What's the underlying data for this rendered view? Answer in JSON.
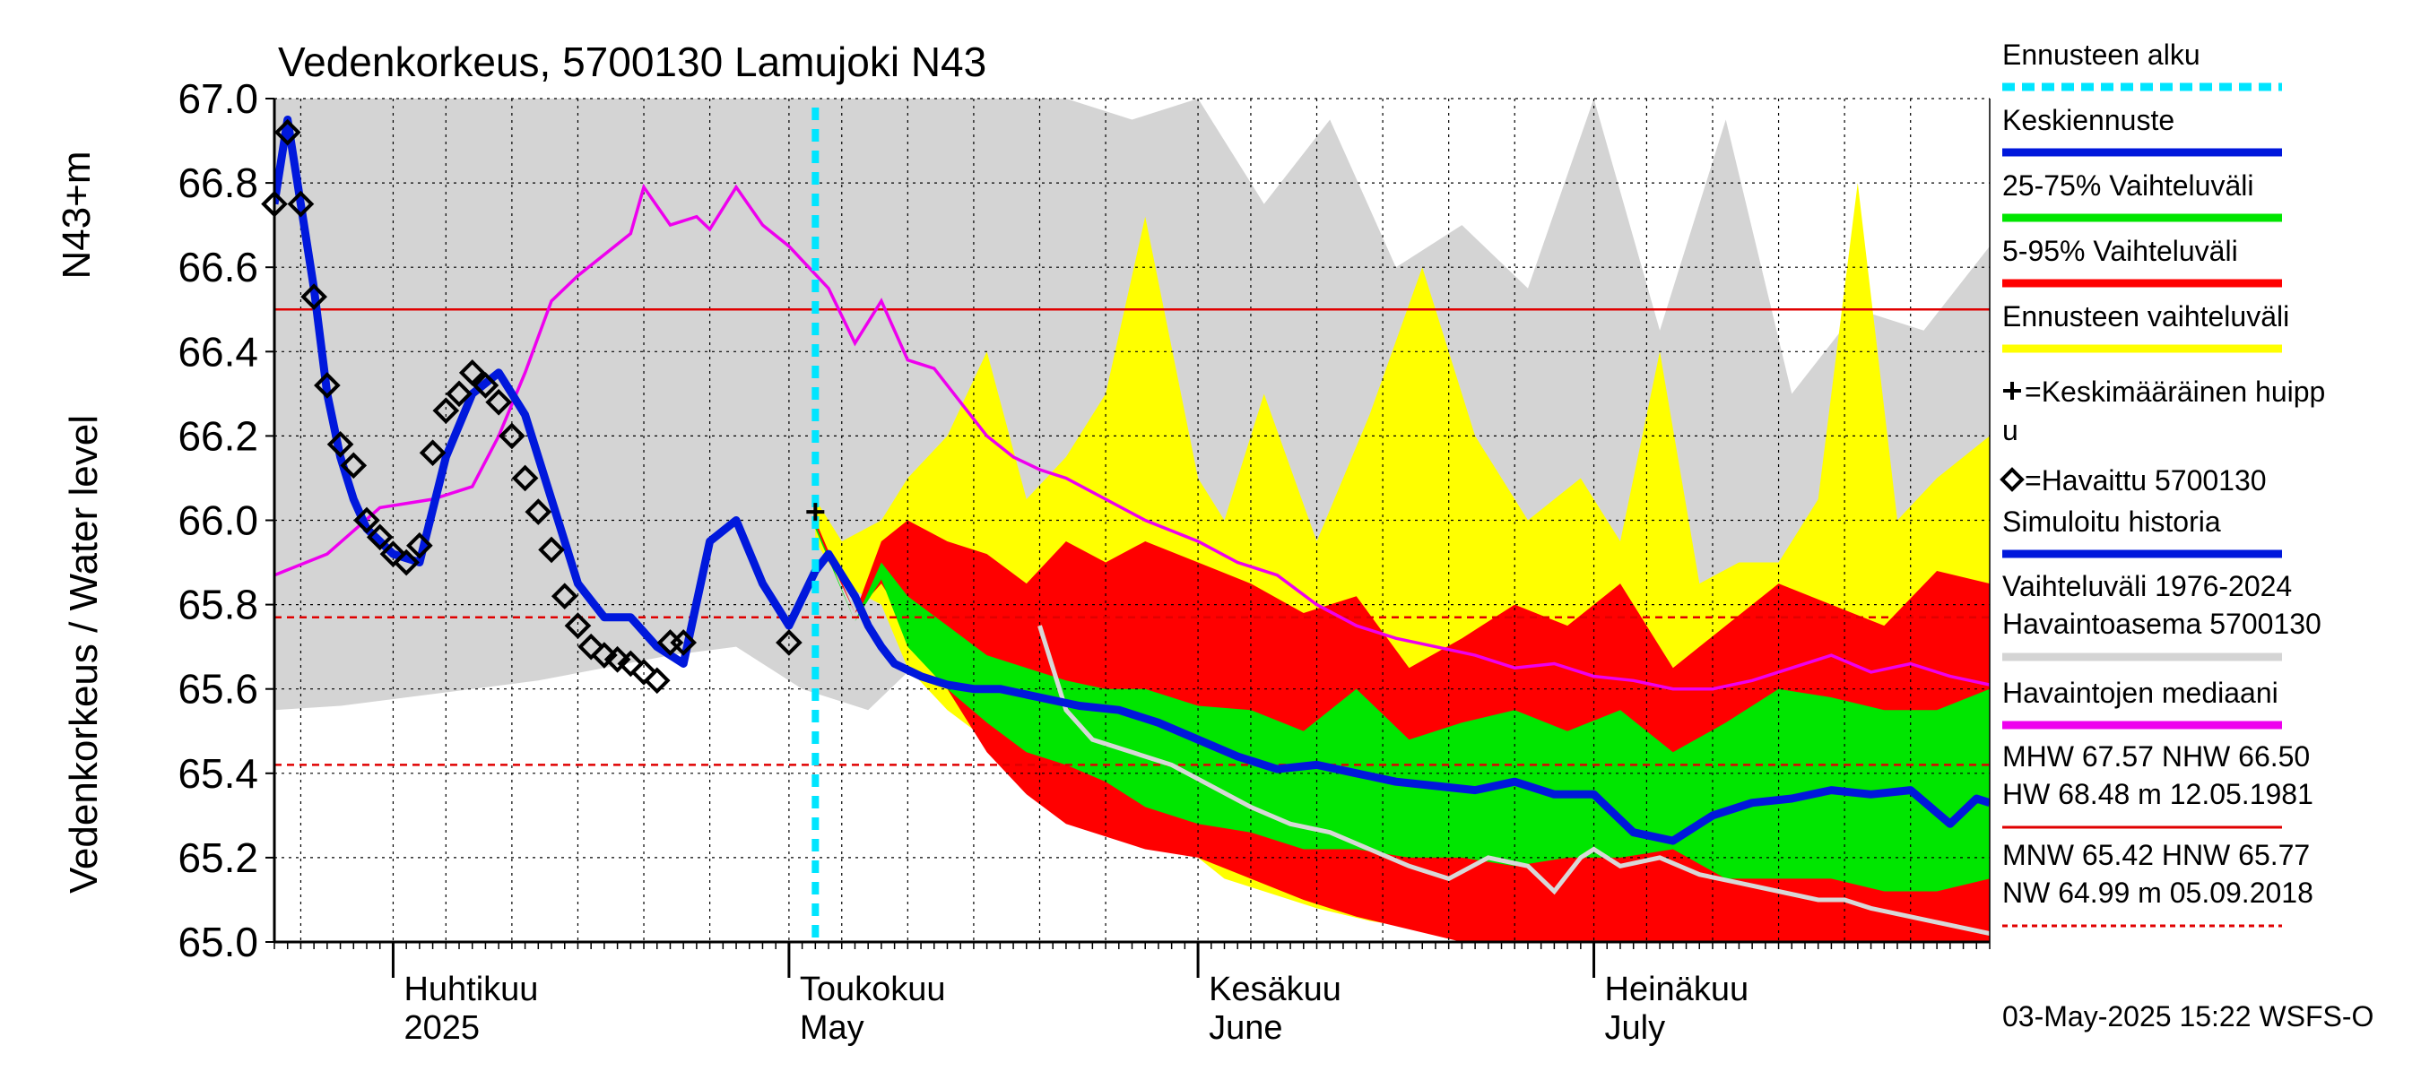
{
  "chart_data": {
    "type": "area",
    "title": "Vedenkorkeus, 5700130 Lamujoki N43",
    "ylabel_unit": "N43+m",
    "ylabel": "Vedenkorkeus / Water level",
    "ylim": [
      65.0,
      67.0
    ],
    "y_ticks": [
      65.0,
      65.2,
      65.4,
      65.6,
      65.8,
      66.0,
      66.2,
      66.4,
      66.6,
      66.8,
      67.0
    ],
    "x_range": [
      "2025-03-23",
      "2025-07-31"
    ],
    "month_labels": [
      {
        "date": "2025-04-01",
        "fi": "Huhtikuu",
        "en": "2025"
      },
      {
        "date": "2025-05-01",
        "fi": "Toukokuu",
        "en": "May"
      },
      {
        "date": "2025-06-01",
        "fi": "Kesäkuu",
        "en": "June"
      },
      {
        "date": "2025-07-01",
        "fi": "Heinäkuu",
        "en": "July"
      }
    ],
    "forecast_start": "2025-05-03",
    "reference_lines": [
      {
        "name": "NHW",
        "value": 66.5,
        "style": "solid",
        "color": "#e00000"
      },
      {
        "name": "HNW",
        "value": 65.77,
        "style": "dashed",
        "color": "#e00000"
      },
      {
        "name": "MNW",
        "value": 65.42,
        "style": "dashed",
        "color": "#e00000"
      }
    ],
    "colors": {
      "forecast_start": "#00e5ff",
      "mean_forecast": "#0018dc",
      "p25_75": "#00e600",
      "p5_95": "#ff0000",
      "forecast_range": "#ffff00",
      "historical_range": "#d4d4d4",
      "median": "#ee00ee",
      "light_line": "#d8d8d8",
      "observed": "#000000"
    },
    "series": {
      "hist_range": {
        "x": [
          "2025-03-23",
          "2025-03-28",
          "2025-04-02",
          "2025-04-07",
          "2025-04-12",
          "2025-04-17",
          "2025-04-22",
          "2025-04-27",
          "2025-05-02",
          "2025-05-07",
          "2025-05-12",
          "2025-05-17",
          "2025-05-22",
          "2025-05-27",
          "2025-06-01",
          "2025-06-06",
          "2025-06-11",
          "2025-06-16",
          "2025-06-21",
          "2025-06-26",
          "2025-07-01",
          "2025-07-06",
          "2025-07-11",
          "2025-07-16",
          "2025-07-21",
          "2025-07-26",
          "2025-07-31"
        ],
        "high": [
          67.0,
          67.0,
          67.0,
          67.0,
          67.0,
          67.0,
          67.0,
          67.0,
          67.0,
          67.0,
          67.0,
          67.0,
          67.0,
          66.95,
          67.0,
          66.75,
          66.95,
          66.6,
          66.7,
          66.55,
          67.0,
          66.45,
          66.95,
          66.3,
          66.5,
          66.45,
          66.65
        ],
        "low": [
          65.55,
          65.56,
          65.58,
          65.6,
          65.62,
          65.65,
          65.68,
          65.7,
          65.6,
          65.55,
          65.7,
          65.6,
          65.62,
          65.55,
          65.6,
          65.58,
          65.56,
          65.58,
          65.62,
          65.6,
          65.58,
          65.6,
          65.56,
          65.58,
          65.6,
          65.6,
          65.6
        ]
      },
      "forecast_range": {
        "x": [
          "2025-05-03",
          "2025-05-05",
          "2025-05-08",
          "2025-05-10",
          "2025-05-13",
          "2025-05-16",
          "2025-05-19",
          "2025-05-22",
          "2025-05-25",
          "2025-05-28",
          "2025-06-01",
          "2025-06-03",
          "2025-06-06",
          "2025-06-10",
          "2025-06-14",
          "2025-06-18",
          "2025-06-22",
          "2025-06-26",
          "2025-06-30",
          "2025-07-03",
          "2025-07-06",
          "2025-07-09",
          "2025-07-12",
          "2025-07-15",
          "2025-07-18",
          "2025-07-21",
          "2025-07-24",
          "2025-07-27",
          "2025-07-31"
        ],
        "high": [
          66.05,
          65.95,
          66.0,
          66.1,
          66.2,
          66.4,
          66.05,
          66.15,
          66.3,
          66.72,
          66.1,
          66.0,
          66.3,
          65.95,
          66.25,
          66.6,
          66.2,
          66.0,
          66.1,
          65.95,
          66.4,
          65.85,
          65.9,
          65.9,
          66.05,
          66.8,
          66.0,
          66.1,
          66.2
        ],
        "low": [
          65.95,
          65.85,
          65.8,
          65.65,
          65.55,
          65.48,
          65.45,
          65.42,
          65.38,
          65.3,
          65.2,
          65.15,
          65.12,
          65.08,
          65.05,
          65.03,
          65.02,
          65.01,
          65.0,
          65.0,
          65.0,
          65.0,
          65.0,
          65.0,
          65.0,
          65.0,
          65.0,
          65.0,
          65.0
        ]
      },
      "p5_95": {
        "x": [
          "2025-05-03",
          "2025-05-06",
          "2025-05-08",
          "2025-05-10",
          "2025-05-13",
          "2025-05-16",
          "2025-05-19",
          "2025-05-22",
          "2025-05-25",
          "2025-05-28",
          "2025-06-01",
          "2025-06-05",
          "2025-06-09",
          "2025-06-13",
          "2025-06-17",
          "2025-06-21",
          "2025-06-25",
          "2025-06-29",
          "2025-07-03",
          "2025-07-07",
          "2025-07-11",
          "2025-07-15",
          "2025-07-19",
          "2025-07-23",
          "2025-07-27",
          "2025-07-31"
        ],
        "high": [
          66.0,
          65.78,
          65.95,
          66.0,
          65.95,
          65.92,
          65.85,
          65.95,
          65.9,
          65.95,
          65.9,
          65.85,
          65.78,
          65.82,
          65.65,
          65.72,
          65.8,
          65.75,
          65.85,
          65.65,
          65.75,
          65.85,
          65.8,
          65.75,
          65.88,
          65.85
        ],
        "low": [
          65.98,
          65.78,
          65.85,
          65.75,
          65.6,
          65.45,
          65.35,
          65.28,
          65.25,
          65.22,
          65.2,
          65.15,
          65.1,
          65.06,
          65.03,
          65.0,
          65.0,
          65.0,
          65.0,
          65.0,
          65.0,
          65.0,
          65.0,
          65.0,
          65.0,
          65.0
        ]
      },
      "p25_75": {
        "x": [
          "2025-05-03",
          "2025-05-06",
          "2025-05-08",
          "2025-05-10",
          "2025-05-13",
          "2025-05-16",
          "2025-05-19",
          "2025-05-22",
          "2025-05-25",
          "2025-05-28",
          "2025-06-01",
          "2025-06-05",
          "2025-06-09",
          "2025-06-13",
          "2025-06-17",
          "2025-06-21",
          "2025-06-25",
          "2025-06-29",
          "2025-07-03",
          "2025-07-07",
          "2025-07-11",
          "2025-07-15",
          "2025-07-19",
          "2025-07-23",
          "2025-07-27",
          "2025-07-31"
        ],
        "high": [
          65.99,
          65.76,
          65.9,
          65.82,
          65.75,
          65.68,
          65.65,
          65.62,
          65.6,
          65.6,
          65.56,
          65.55,
          65.5,
          65.6,
          65.48,
          65.52,
          65.55,
          65.5,
          65.55,
          65.45,
          65.52,
          65.6,
          65.58,
          65.55,
          65.55,
          65.6
        ],
        "low": [
          65.98,
          65.76,
          65.86,
          65.7,
          65.6,
          65.52,
          65.45,
          65.42,
          65.38,
          65.32,
          65.28,
          65.26,
          65.22,
          65.22,
          65.2,
          65.2,
          65.18,
          65.2,
          65.2,
          65.22,
          65.15,
          65.15,
          65.15,
          65.12,
          65.12,
          65.15
        ]
      },
      "mean_forecast": {
        "x": [
          "2025-03-23",
          "2025-03-24",
          "2025-03-25",
          "2025-03-26",
          "2025-03-27",
          "2025-03-28",
          "2025-03-29",
          "2025-03-30",
          "2025-04-01",
          "2025-04-03",
          "2025-04-05",
          "2025-04-07",
          "2025-04-09",
          "2025-04-11",
          "2025-04-13",
          "2025-04-15",
          "2025-04-17",
          "2025-04-19",
          "2025-04-21",
          "2025-04-23",
          "2025-04-25",
          "2025-04-27",
          "2025-04-29",
          "2025-05-01",
          "2025-05-03",
          "2025-05-04",
          "2025-05-06",
          "2025-05-07",
          "2025-05-08",
          "2025-05-09",
          "2025-05-11",
          "2025-05-13",
          "2025-05-15",
          "2025-05-17",
          "2025-05-20",
          "2025-05-23",
          "2025-05-26",
          "2025-05-29",
          "2025-06-01",
          "2025-06-04",
          "2025-06-07",
          "2025-06-10",
          "2025-06-13",
          "2025-06-16",
          "2025-06-19",
          "2025-06-22",
          "2025-06-25",
          "2025-06-28",
          "2025-07-01",
          "2025-07-04",
          "2025-07-07",
          "2025-07-10",
          "2025-07-13",
          "2025-07-16",
          "2025-07-19",
          "2025-07-22",
          "2025-07-25",
          "2025-07-28",
          "2025-07-30",
          "2025-07-31"
        ],
        "y": [
          66.75,
          66.95,
          66.75,
          66.55,
          66.3,
          66.15,
          66.05,
          65.98,
          65.92,
          65.9,
          66.15,
          66.3,
          66.35,
          66.25,
          66.05,
          65.85,
          65.77,
          65.77,
          65.7,
          65.66,
          65.95,
          66.0,
          65.85,
          65.75,
          65.88,
          65.92,
          65.82,
          65.75,
          65.7,
          65.66,
          65.63,
          65.61,
          65.6,
          65.6,
          65.58,
          65.56,
          65.55,
          65.52,
          65.48,
          65.44,
          65.41,
          65.42,
          65.4,
          65.38,
          65.37,
          65.36,
          65.38,
          65.35,
          65.35,
          65.26,
          65.24,
          65.3,
          65.33,
          65.34,
          65.36,
          65.35,
          65.36,
          65.28,
          65.34,
          65.33
        ]
      },
      "median": {
        "x": [
          "2025-03-23",
          "2025-03-27",
          "2025-03-31",
          "2025-04-04",
          "2025-04-07",
          "2025-04-09",
          "2025-04-11",
          "2025-04-13",
          "2025-04-15",
          "2025-04-17",
          "2025-04-19",
          "2025-04-20",
          "2025-04-22",
          "2025-04-24",
          "2025-04-25",
          "2025-04-27",
          "2025-04-29",
          "2025-05-01",
          "2025-05-04",
          "2025-05-06",
          "2025-05-08",
          "2025-05-10",
          "2025-05-12",
          "2025-05-14",
          "2025-05-16",
          "2025-05-18",
          "2025-05-20",
          "2025-05-22",
          "2025-05-25",
          "2025-05-28",
          "2025-06-01",
          "2025-06-04",
          "2025-06-07",
          "2025-06-10",
          "2025-06-13",
          "2025-06-16",
          "2025-06-19",
          "2025-06-22",
          "2025-06-25",
          "2025-06-28",
          "2025-07-01",
          "2025-07-04",
          "2025-07-07",
          "2025-07-10",
          "2025-07-13",
          "2025-07-16",
          "2025-07-19",
          "2025-07-22",
          "2025-07-25",
          "2025-07-28",
          "2025-07-31"
        ],
        "y": [
          65.87,
          65.92,
          66.03,
          66.05,
          66.08,
          66.2,
          66.35,
          66.52,
          66.58,
          66.63,
          66.68,
          66.79,
          66.7,
          66.72,
          66.69,
          66.79,
          66.7,
          66.65,
          66.55,
          66.42,
          66.52,
          66.38,
          66.36,
          66.28,
          66.2,
          66.15,
          66.12,
          66.1,
          66.05,
          66.0,
          65.95,
          65.9,
          65.87,
          65.8,
          65.75,
          65.72,
          65.7,
          65.68,
          65.65,
          65.66,
          65.63,
          65.62,
          65.6,
          65.6,
          65.62,
          65.65,
          65.68,
          65.64,
          65.66,
          65.63,
          65.61
        ]
      },
      "light_line": {
        "x": [
          "2025-05-20",
          "2025-05-22",
          "2025-05-24",
          "2025-05-27",
          "2025-05-30",
          "2025-06-02",
          "2025-06-05",
          "2025-06-08",
          "2025-06-11",
          "2025-06-14",
          "2025-06-17",
          "2025-06-20",
          "2025-06-23",
          "2025-06-26",
          "2025-06-28",
          "2025-06-30",
          "2025-07-01",
          "2025-07-03",
          "2025-07-06",
          "2025-07-09",
          "2025-07-12",
          "2025-07-15",
          "2025-07-18",
          "2025-07-20",
          "2025-07-22",
          "2025-07-25",
          "2025-07-28",
          "2025-07-31"
        ],
        "y": [
          65.75,
          65.55,
          65.48,
          65.45,
          65.42,
          65.37,
          65.32,
          65.28,
          65.26,
          65.22,
          65.18,
          65.15,
          65.2,
          65.18,
          65.12,
          65.2,
          65.22,
          65.18,
          65.2,
          65.16,
          65.14,
          65.12,
          65.1,
          65.1,
          65.08,
          65.06,
          65.04,
          65.02
        ]
      },
      "observed": {
        "x": [
          "2025-03-23",
          "2025-03-24",
          "2025-03-25",
          "2025-03-26",
          "2025-03-27",
          "2025-03-28",
          "2025-03-29",
          "2025-03-30",
          "2025-03-31",
          "2025-04-01",
          "2025-04-02",
          "2025-04-03",
          "2025-04-04",
          "2025-04-05",
          "2025-04-06",
          "2025-04-07",
          "2025-04-08",
          "2025-04-09",
          "2025-04-10",
          "2025-04-11",
          "2025-04-12",
          "2025-04-13",
          "2025-04-14",
          "2025-04-15",
          "2025-04-16",
          "2025-04-17",
          "2025-04-18",
          "2025-04-19",
          "2025-04-20",
          "2025-04-21",
          "2025-04-22",
          "2025-04-23",
          "2025-05-01"
        ],
        "y": [
          66.75,
          66.92,
          66.75,
          66.53,
          66.32,
          66.18,
          66.13,
          66.0,
          65.96,
          65.92,
          65.9,
          65.94,
          66.16,
          66.26,
          66.3,
          66.35,
          66.32,
          66.28,
          66.2,
          66.1,
          66.02,
          65.93,
          65.82,
          65.75,
          65.7,
          65.68,
          65.67,
          65.66,
          65.64,
          65.62,
          65.71,
          65.71,
          65.71
        ]
      },
      "mean_peak": {
        "x": "2025-05-03",
        "y": 66.02
      }
    },
    "legend": [
      {
        "label": "Ennusteen alku",
        "kind": "dashed",
        "color": "#00e5ff"
      },
      {
        "label": "Keskiennuste",
        "kind": "line",
        "color": "#0018dc"
      },
      {
        "label": "25-75% Vaihteluväli",
        "kind": "line",
        "color": "#00e600"
      },
      {
        "label": "5-95% Vaihteluväli",
        "kind": "line",
        "color": "#ff0000"
      },
      {
        "label": "Ennusteen vaihteluväli",
        "kind": "line",
        "color": "#ffff00"
      },
      {
        "label": "=Keskimääräinen huipp",
        "label2": "u",
        "kind": "plus",
        "color": "#000000"
      },
      {
        "label": "=Havaittu 5700130",
        "kind": "diamond",
        "color": "#000000"
      },
      {
        "label": "Simuloitu historia",
        "kind": "line",
        "color": "#0018dc"
      },
      {
        "label": "Vaihteluväli 1976-2024",
        "label2": " Havaintoasema 5700130",
        "kind": "line",
        "color": "#d4d4d4"
      },
      {
        "label": "Havaintojen mediaani",
        "kind": "line",
        "color": "#ee00ee"
      },
      {
        "label": "MHW  67.57 NHW  66.50",
        "label2": "HW  68.48 m 12.05.1981",
        "kind": "line",
        "color": "#e00000"
      },
      {
        "label": "MNW  65.42 HNW  65.77",
        "label2": "NW  64.99 m 05.09.2018",
        "kind": "dashed",
        "color": "#e00000"
      }
    ],
    "footer": "03-May-2025 15:22 WSFS-O"
  }
}
